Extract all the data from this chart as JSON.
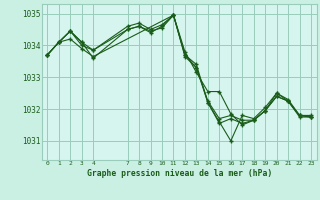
{
  "background_color": "#caf0e4",
  "plot_bg_color": "#d6f5ee",
  "grid_color": "#99ccbb",
  "line_color": "#1a5c1a",
  "marker_color": "#1a5c1a",
  "title": "Graphe pression niveau de la mer (hPa)",
  "xlim": [
    -0.5,
    23.5
  ],
  "ylim": [
    1030.4,
    1035.3
  ],
  "yticks": [
    1031,
    1032,
    1033,
    1034,
    1035
  ],
  "xticks": [
    0,
    1,
    2,
    3,
    4,
    7,
    8,
    9,
    10,
    11,
    12,
    13,
    14,
    15,
    16,
    17,
    18,
    19,
    20,
    21,
    22,
    23
  ],
  "series": [
    {
      "x": [
        0,
        1,
        2,
        3,
        4,
        7,
        8,
        9,
        10,
        11,
        12,
        13,
        14,
        15,
        16,
        17,
        18,
        19,
        20,
        21,
        22,
        23
      ],
      "y": [
        1033.7,
        1034.1,
        1034.45,
        1034.1,
        1033.85,
        1034.6,
        1034.7,
        1034.5,
        1034.65,
        1034.95,
        1033.7,
        1033.4,
        1032.2,
        1031.6,
        1031.0,
        1031.8,
        1031.7,
        1032.05,
        1032.5,
        1032.3,
        1031.8,
        1031.8
      ]
    },
    {
      "x": [
        0,
        1,
        2,
        3,
        4,
        7,
        8,
        9,
        10,
        11,
        12,
        13,
        14,
        15,
        16,
        17,
        18,
        19,
        20,
        21,
        22,
        23
      ],
      "y": [
        1033.7,
        1034.1,
        1034.45,
        1034.1,
        1033.6,
        1034.5,
        1034.6,
        1034.45,
        1034.55,
        1034.95,
        1033.8,
        1033.15,
        1032.55,
        1032.55,
        1031.85,
        1031.5,
        1031.65,
        1031.95,
        1032.5,
        1032.25,
        1031.75,
        1031.75
      ]
    },
    {
      "x": [
        0,
        1,
        2,
        3,
        4,
        7,
        8,
        9,
        10,
        11,
        12,
        13,
        14,
        15,
        16,
        17,
        18,
        19,
        20,
        21,
        22,
        23
      ],
      "y": [
        1033.7,
        1034.1,
        1034.45,
        1034.0,
        1033.85,
        1034.5,
        1034.6,
        1034.4,
        1034.6,
        1034.95,
        1033.7,
        1033.3,
        1032.25,
        1031.7,
        1031.8,
        1031.65,
        1031.65,
        1031.95,
        1032.4,
        1032.25,
        1031.8,
        1031.75
      ]
    },
    {
      "x": [
        0,
        1,
        2,
        3,
        4,
        11,
        12,
        13,
        14,
        15,
        16,
        17,
        18,
        19,
        20,
        21,
        22,
        23
      ],
      "y": [
        1033.7,
        1034.1,
        1034.2,
        1033.9,
        1033.65,
        1034.95,
        1033.65,
        1033.3,
        1032.2,
        1031.55,
        1031.7,
        1031.55,
        1031.65,
        1031.95,
        1032.4,
        1032.25,
        1031.8,
        1031.75
      ]
    }
  ]
}
